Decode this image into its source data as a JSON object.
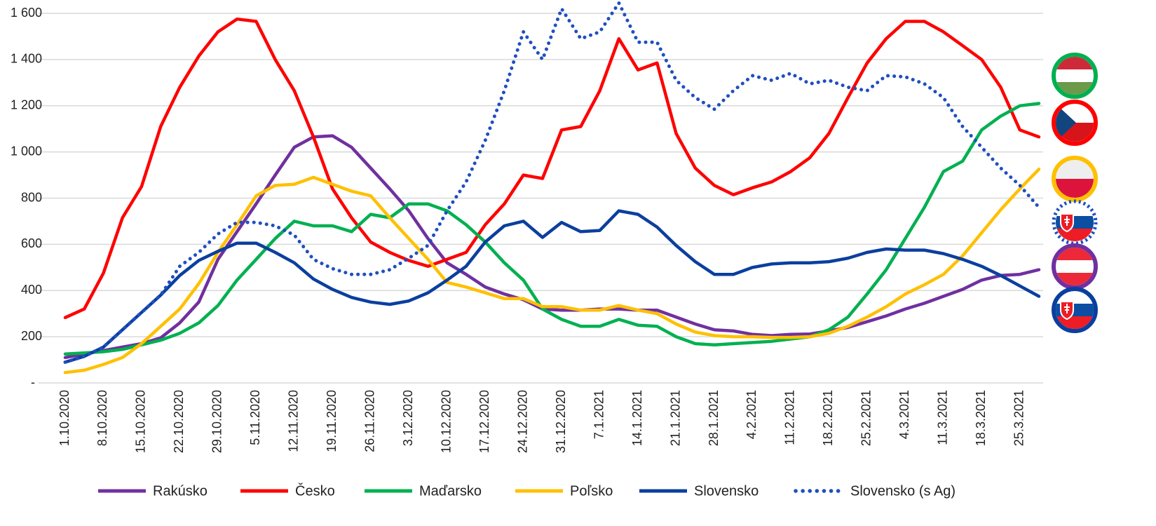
{
  "chart_data": {
    "type": "line",
    "categories": [
      "1.10.2020",
      null,
      "8.10.2020",
      null,
      "15.10.2020",
      null,
      "22.10.2020",
      null,
      "29.10.2020",
      null,
      "5.11.2020",
      null,
      "12.11.2020",
      null,
      "19.11.2020",
      null,
      "26.11.2020",
      null,
      "3.12.2020",
      null,
      "10.12.2020",
      null,
      "17.12.2020",
      null,
      "24.12.2020",
      null,
      "31.12.2020",
      null,
      "7.1.2021",
      null,
      "14.1.2021",
      null,
      "21.1.2021",
      null,
      "28.1.2021",
      null,
      "4.2.2021",
      null,
      "11.2.2021",
      null,
      "18.2.2021",
      null,
      "25.2.2021",
      null,
      "4.3.2021",
      null,
      "11.3.2021",
      null,
      "18.3.2021",
      null,
      "25.3.2021",
      null
    ],
    "ylim": [
      0,
      1600
    ],
    "yticks": [
      {
        "value": 0,
        "label": "-"
      },
      200,
      400,
      600,
      800,
      {
        "value": 1000,
        "label": "1 000"
      },
      {
        "value": 1200,
        "label": "1 200"
      },
      {
        "value": 1400,
        "label": "1 400"
      },
      {
        "value": 1600,
        "label": "1 600"
      }
    ],
    "grid": true,
    "legend": "bottom",
    "series": [
      {
        "name": "Rakúsko",
        "color": "#7030a0",
        "style": "solid",
        "values": [
          110,
          125,
          140,
          155,
          170,
          195,
          260,
          350,
          535,
          655,
          775,
          900,
          1020,
          1065,
          1070,
          1020,
          930,
          840,
          745,
          625,
          520,
          470,
          415,
          385,
          360,
          320,
          315,
          315,
          320,
          320,
          315,
          315,
          285,
          255,
          230,
          225,
          210,
          205,
          210,
          212,
          225,
          240,
          265,
          290,
          320,
          345,
          375,
          405,
          445,
          465,
          470,
          490
        ]
      },
      {
        "name": "Česko",
        "color": "#ff0000",
        "style": "solid",
        "values": [
          283,
          320,
          475,
          715,
          850,
          1110,
          1280,
          1415,
          1520,
          1575,
          1565,
          1400,
          1265,
          1065,
          840,
          715,
          610,
          565,
          530,
          505,
          535,
          565,
          685,
          775,
          900,
          885,
          1095,
          1110,
          1265,
          1490,
          1355,
          1385,
          1080,
          930,
          855,
          815,
          845,
          870,
          915,
          975,
          1080,
          1235,
          1385,
          1490,
          1565,
          1565,
          1520,
          1460,
          1400,
          1280,
          1095,
          1065
        ]
      },
      {
        "name": "Maďarsko",
        "color": "#00b050",
        "style": "solid",
        "values": [
          125,
          130,
          135,
          145,
          165,
          185,
          215,
          260,
          335,
          445,
          535,
          625,
          700,
          680,
          680,
          655,
          730,
          715,
          775,
          775,
          745,
          685,
          610,
          520,
          445,
          320,
          275,
          245,
          245,
          275,
          250,
          245,
          200,
          170,
          165,
          170,
          175,
          180,
          190,
          200,
          230,
          285,
          385,
          490,
          625,
          760,
          915,
          960,
          1095,
          1155,
          1200,
          1210
        ]
      },
      {
        "name": "Poľsko",
        "color": "#ffc000",
        "style": "solid",
        "values": [
          45,
          55,
          80,
          110,
          170,
          245,
          320,
          430,
          565,
          685,
          810,
          855,
          860,
          890,
          860,
          830,
          810,
          715,
          625,
          535,
          435,
          415,
          390,
          365,
          365,
          330,
          330,
          315,
          315,
          335,
          315,
          300,
          255,
          220,
          205,
          200,
          200,
          197,
          197,
          200,
          215,
          245,
          285,
          330,
          385,
          425,
          470,
          550,
          650,
          750,
          840,
          925
        ]
      },
      {
        "name": "Slovensko",
        "color": "#0b3f9f",
        "style": "solid",
        "values": [
          90,
          115,
          155,
          230,
          305,
          380,
          465,
          530,
          570,
          605,
          605,
          565,
          520,
          450,
          405,
          370,
          350,
          340,
          355,
          390,
          445,
          505,
          610,
          680,
          700,
          630,
          695,
          655,
          660,
          745,
          730,
          675,
          595,
          525,
          470,
          470,
          500,
          515,
          520,
          520,
          525,
          540,
          565,
          580,
          575,
          575,
          560,
          535,
          505,
          465,
          420,
          375
        ]
      },
      {
        "name": "Slovensko (s Ag)",
        "color": "#1f4fbf",
        "style": "dotted",
        "values": [
          90,
          115,
          155,
          230,
          305,
          380,
          505,
          565,
          645,
          695,
          695,
          680,
          640,
          535,
          495,
          470,
          470,
          490,
          540,
          595,
          745,
          870,
          1050,
          1265,
          1520,
          1400,
          1620,
          1490,
          1520,
          1645,
          1475,
          1475,
          1310,
          1235,
          1185,
          1265,
          1330,
          1310,
          1340,
          1295,
          1310,
          1280,
          1265,
          1330,
          1325,
          1295,
          1235,
          1110,
          1020,
          930,
          855,
          760
        ]
      }
    ]
  }
}
